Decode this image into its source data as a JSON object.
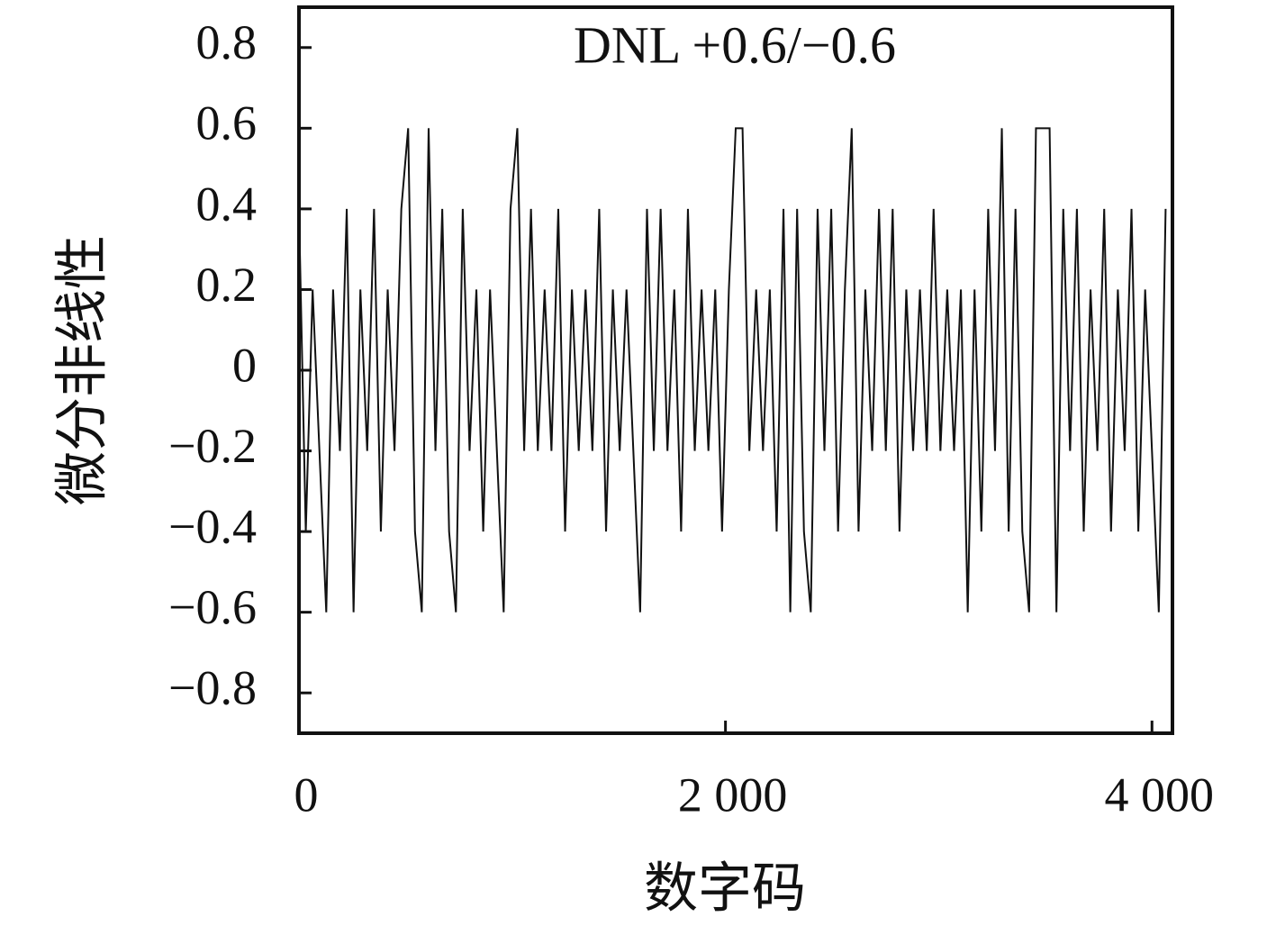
{
  "chart_data": {
    "type": "line",
    "title": "DNL +0.6/−0.6",
    "x_label": "数字码",
    "y_label": "微分非线性",
    "x": [
      0,
      32,
      64,
      96,
      128,
      160,
      192,
      224,
      256,
      288,
      320,
      352,
      384,
      416,
      448,
      480,
      512,
      544,
      576,
      608,
      640,
      672,
      704,
      736,
      768,
      800,
      832,
      864,
      896,
      928,
      960,
      992,
      1024,
      1056,
      1088,
      1120,
      1152,
      1184,
      1216,
      1248,
      1280,
      1312,
      1344,
      1376,
      1408,
      1440,
      1472,
      1504,
      1536,
      1568,
      1600,
      1632,
      1664,
      1696,
      1728,
      1760,
      1792,
      1824,
      1856,
      1888,
      1920,
      1952,
      1984,
      2016,
      2048,
      2080,
      2112,
      2144,
      2176,
      2208,
      2240,
      2272,
      2304,
      2336,
      2368,
      2400,
      2432,
      2464,
      2496,
      2528,
      2560,
      2592,
      2624,
      2656,
      2688,
      2720,
      2752,
      2784,
      2816,
      2848,
      2880,
      2912,
      2944,
      2976,
      3008,
      3040,
      3072,
      3104,
      3136,
      3168,
      3200,
      3232,
      3264,
      3296,
      3328,
      3360,
      3392,
      3424,
      3456,
      3488,
      3520,
      3552,
      3584,
      3616,
      3648,
      3680,
      3712,
      3744,
      3776,
      3808,
      3840,
      3872,
      3904,
      3936,
      3968,
      4000,
      4032,
      4064
    ],
    "series": [
      {
        "color": "#111111",
        "values": [
          0.4,
          -0.4,
          0.2,
          -0.2,
          -0.6,
          0.2,
          -0.2,
          0.4,
          -0.6,
          0.2,
          -0.2,
          0.4,
          -0.4,
          0.2,
          -0.2,
          0.4,
          0.6,
          -0.4,
          -0.6,
          0.6,
          -0.2,
          0.4,
          -0.4,
          -0.6,
          0.4,
          -0.2,
          0.2,
          -0.4,
          0.2,
          -0.2,
          -0.6,
          0.4,
          0.6,
          -0.2,
          0.4,
          -0.2,
          0.2,
          -0.2,
          0.4,
          -0.4,
          0.2,
          -0.2,
          0.2,
          -0.2,
          0.4,
          -0.4,
          0.2,
          -0.2,
          0.2,
          -0.2,
          -0.6,
          0.4,
          -0.2,
          0.4,
          -0.2,
          0.2,
          -0.4,
          0.4,
          -0.2,
          0.2,
          -0.2,
          0.2,
          -0.4,
          0.2,
          0.6,
          0.6,
          -0.2,
          0.2,
          -0.2,
          0.2,
          -0.4,
          0.4,
          -0.6,
          0.4,
          -0.4,
          -0.6,
          0.4,
          -0.2,
          0.4,
          -0.4,
          0.2,
          0.6,
          -0.4,
          0.2,
          -0.2,
          0.4,
          -0.2,
          0.4,
          -0.4,
          0.2,
          -0.2,
          0.2,
          -0.2,
          0.4,
          -0.2,
          0.2,
          -0.2,
          0.2,
          -0.6,
          0.2,
          -0.4,
          0.4,
          -0.2,
          0.6,
          -0.4,
          0.4,
          -0.4,
          -0.6,
          0.6,
          0.6,
          0.6,
          -0.6,
          0.4,
          -0.2,
          0.4,
          -0.4,
          0.2,
          -0.2,
          0.4,
          -0.4,
          0.2,
          -0.2,
          0.4,
          -0.4,
          0.2,
          -0.2,
          -0.6,
          0.4
        ]
      }
    ],
    "xlim": [
      0,
      4096
    ],
    "xticks": [
      0,
      {
        "value": 2000,
        "label": "2 000"
      },
      {
        "value": 4000,
        "label": "4 000"
      }
    ],
    "ylim": [
      -0.9,
      0.9
    ],
    "yticks": [
      {
        "value": -0.8,
        "label": "−0.8"
      },
      {
        "value": -0.6,
        "label": "−0.6"
      },
      {
        "value": -0.4,
        "label": "−0.4"
      },
      {
        "value": -0.2,
        "label": "−0.2"
      },
      0,
      0.2,
      0.4,
      0.6,
      0.8
    ]
  }
}
